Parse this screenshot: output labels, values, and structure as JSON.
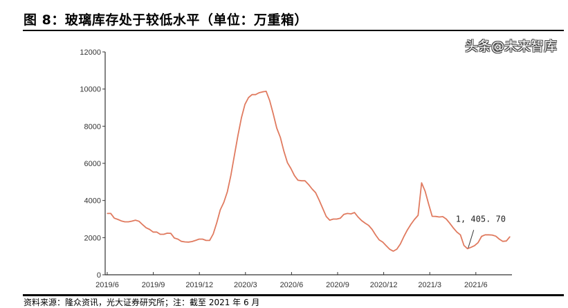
{
  "title": "图 8：玻璃库存处于较低水平（单位：万重箱）",
  "source": "资料来源：隆众资讯，光大证券研究所；注：截至 2021 年 6 月",
  "watermark": "头条@未来智库",
  "chart_data": {
    "type": "line",
    "title": "",
    "xlabel": "",
    "ylabel": "",
    "ylim": [
      0,
      12000
    ],
    "yticks": [
      "0",
      "2000",
      "4000",
      "6000",
      "8000",
      "10000",
      "12000"
    ],
    "xticks": [
      "2019/6",
      "2019/9",
      "2019/12",
      "2020/3",
      "2020/6",
      "2020/9",
      "2020/12",
      "2021/3",
      "2021/6"
    ],
    "grid": false,
    "line_color": "#e07a5f",
    "x_start": "2019-06-01",
    "x_frequency": "weekly",
    "values": [
      3300,
      3300,
      3050,
      2980,
      2900,
      2850,
      2850,
      2890,
      2940,
      2880,
      2700,
      2530,
      2440,
      2300,
      2300,
      2180,
      2180,
      2240,
      2230,
      1980,
      1920,
      1800,
      1770,
      1760,
      1790,
      1850,
      1920,
      1920,
      1850,
      1850,
      2200,
      2800,
      3500,
      3900,
      4470,
      5350,
      6430,
      7500,
      8460,
      9180,
      9540,
      9700,
      9700,
      9800,
      9850,
      9880,
      9380,
      8670,
      7900,
      7400,
      6660,
      6040,
      5720,
      5340,
      5090,
      5060,
      5060,
      4860,
      4620,
      4420,
      4020,
      3580,
      3140,
      2940,
      3000,
      3000,
      3050,
      3250,
      3300,
      3280,
      3350,
      3110,
      2920,
      2780,
      2660,
      2440,
      2140,
      1880,
      1760,
      1560,
      1370,
      1270,
      1380,
      1660,
      2060,
      2420,
      2720,
      2980,
      3200,
      4950,
      4500,
      3800,
      3150,
      3140,
      3110,
      3130,
      3000,
      2770,
      2520,
      2300,
      2150,
      1580,
      1406,
      1480,
      1570,
      1730,
      2070,
      2150,
      2150,
      2140,
      2080,
      1920,
      1800,
      1820,
      2050
    ],
    "annotation": {
      "label": "1, 405. 70",
      "index": 102
    }
  }
}
